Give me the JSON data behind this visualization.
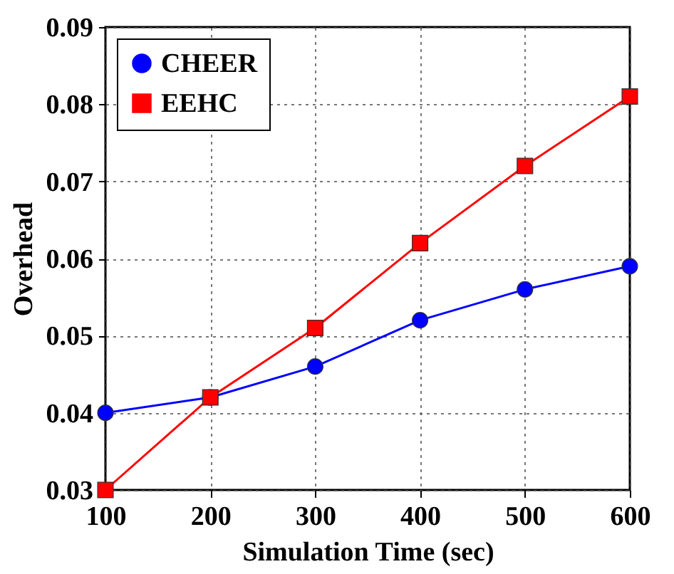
{
  "chart_data": {
    "type": "line",
    "xlabel": "Simulation Time (sec)",
    "ylabel": "Overhead",
    "x": [
      100,
      200,
      300,
      400,
      500,
      600
    ],
    "series": [
      {
        "name": "CHEER",
        "color": "#0000ff",
        "marker": "circle",
        "values": [
          0.04,
          0.042,
          0.046,
          0.052,
          0.056,
          0.059
        ]
      },
      {
        "name": "EEHC",
        "color": "#ff0000",
        "marker": "square",
        "values": [
          0.03,
          0.042,
          0.051,
          0.062,
          0.072,
          0.081
        ]
      }
    ],
    "xlim": [
      100,
      600
    ],
    "xticks": [
      100,
      200,
      300,
      400,
      500,
      600
    ],
    "ylim": [
      0.03,
      0.09
    ],
    "yticks": [
      0.03,
      0.04,
      0.05,
      0.06,
      0.07,
      0.08,
      0.09
    ],
    "grid": true,
    "legend": "top left",
    "line_style": "solid"
  }
}
